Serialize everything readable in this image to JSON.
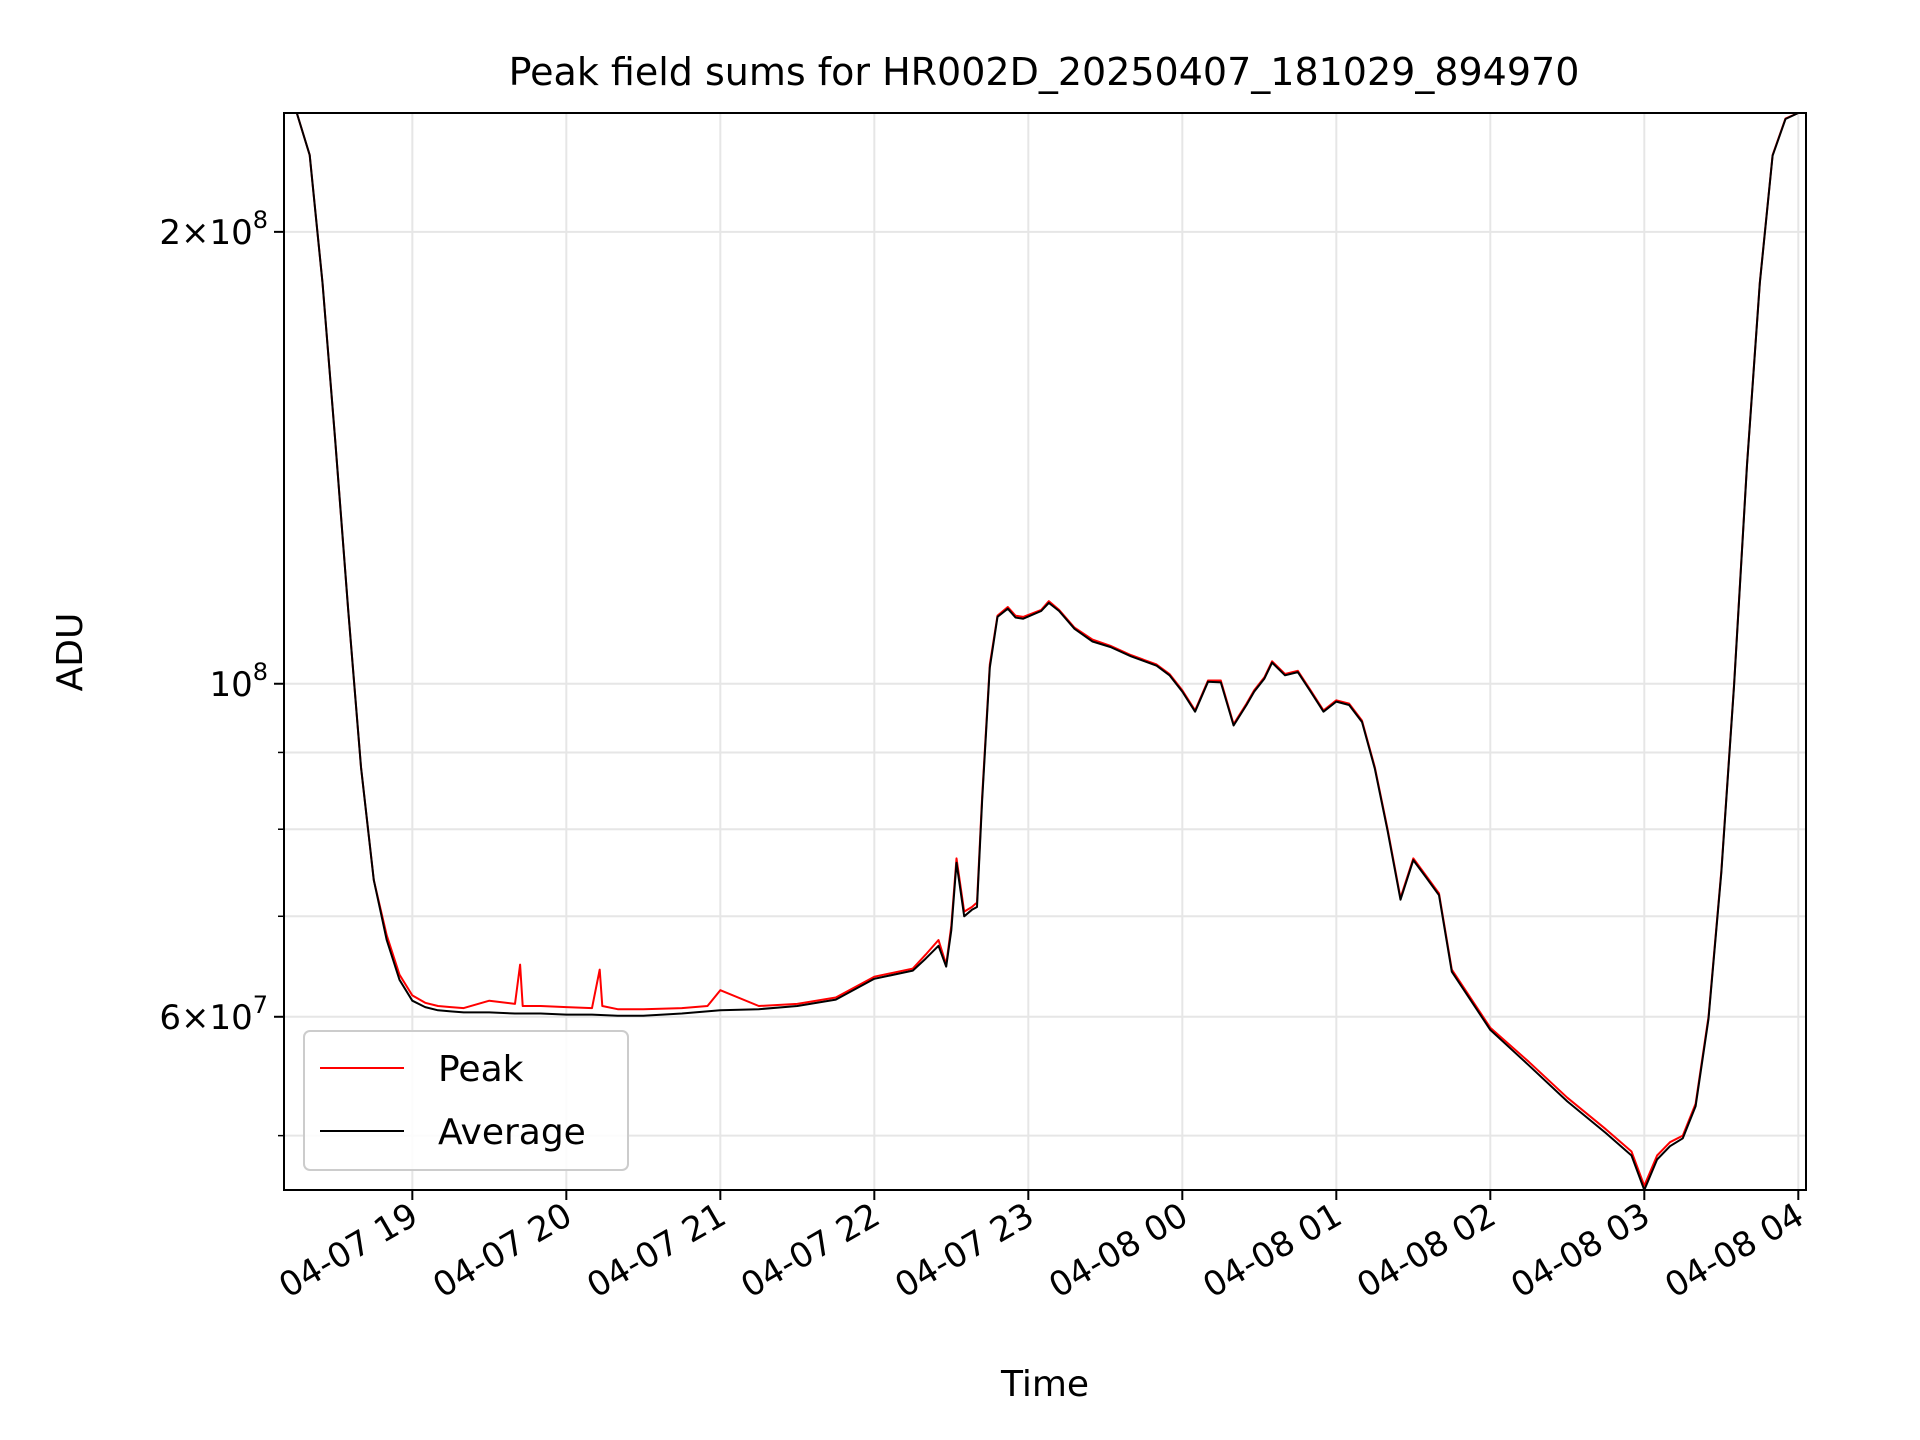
{
  "chart_data": {
    "type": "line",
    "title": "Peak field sums for HR002D_20250407_181029_894970",
    "xlabel": "Time",
    "ylabel": "ADU",
    "yscale": "log",
    "ylim": [
      46000000,
      240000000
    ],
    "xlim": [
      "2025-04-07 18:10",
      "2025-04-08 04:03"
    ],
    "grid": true,
    "legend_position": "lower-left",
    "x_ticks": [
      {
        "t": "2025-04-07 19:00",
        "label": "04-07 19"
      },
      {
        "t": "2025-04-07 20:00",
        "label": "04-07 20"
      },
      {
        "t": "2025-04-07 21:00",
        "label": "04-07 21"
      },
      {
        "t": "2025-04-07 22:00",
        "label": "04-07 22"
      },
      {
        "t": "2025-04-07 23:00",
        "label": "04-07 23"
      },
      {
        "t": "2025-04-08 00:00",
        "label": "04-08 00"
      },
      {
        "t": "2025-04-08 01:00",
        "label": "04-08 01"
      },
      {
        "t": "2025-04-08 02:00",
        "label": "04-08 02"
      },
      {
        "t": "2025-04-08 03:00",
        "label": "04-08 03"
      },
      {
        "t": "2025-04-08 04:00",
        "label": "04-08 04"
      }
    ],
    "y_major_ticks": [
      {
        "value": 60000000,
        "mant": "6",
        "exp": "7"
      },
      {
        "value": 100000000,
        "mant": "",
        "exp": "8"
      },
      {
        "value": 200000000,
        "mant": "2",
        "exp": "8"
      }
    ],
    "y_minor_gridlines": [
      50000000,
      70000000,
      80000000,
      90000000
    ],
    "series": [
      {
        "name": "Peak",
        "color": "#ff0000",
        "width": 1,
        "x": [
          "2025-04-07 18:10",
          "2025-04-07 18:15",
          "2025-04-07 18:20",
          "2025-04-07 18:25",
          "2025-04-07 18:30",
          "2025-04-07 18:35",
          "2025-04-07 18:40",
          "2025-04-07 18:45",
          "2025-04-07 18:50",
          "2025-04-07 18:55",
          "2025-04-07 19:00",
          "2025-04-07 19:05",
          "2025-04-07 19:10",
          "2025-04-07 19:15",
          "2025-04-07 19:20",
          "2025-04-07 19:30",
          "2025-04-07 19:40",
          "2025-04-07 19:42",
          "2025-04-07 19:43",
          "2025-04-07 19:50",
          "2025-04-07 20:00",
          "2025-04-07 20:10",
          "2025-04-07 20:13",
          "2025-04-07 20:14",
          "2025-04-07 20:20",
          "2025-04-07 20:30",
          "2025-04-07 20:45",
          "2025-04-07 20:55",
          "2025-04-07 21:00",
          "2025-04-07 21:15",
          "2025-04-07 21:30",
          "2025-04-07 21:45",
          "2025-04-07 22:00",
          "2025-04-07 22:15",
          "2025-04-07 22:20",
          "2025-04-07 22:25",
          "2025-04-07 22:28",
          "2025-04-07 22:30",
          "2025-04-07 22:32",
          "2025-04-07 22:35",
          "2025-04-07 22:38",
          "2025-04-07 22:40",
          "2025-04-07 22:42",
          "2025-04-07 22:45",
          "2025-04-07 22:48",
          "2025-04-07 22:52",
          "2025-04-07 22:55",
          "2025-04-07 22:58",
          "2025-04-07 23:05",
          "2025-04-07 23:08",
          "2025-04-07 23:12",
          "2025-04-07 23:18",
          "2025-04-07 23:25",
          "2025-04-07 23:32",
          "2025-04-07 23:40",
          "2025-04-07 23:50",
          "2025-04-07 23:55",
          "2025-04-08 00:00",
          "2025-04-08 00:05",
          "2025-04-08 00:10",
          "2025-04-08 00:15",
          "2025-04-08 00:20",
          "2025-04-08 00:25",
          "2025-04-08 00:28",
          "2025-04-08 00:32",
          "2025-04-08 00:35",
          "2025-04-08 00:40",
          "2025-04-08 00:45",
          "2025-04-08 00:50",
          "2025-04-08 00:55",
          "2025-04-08 01:00",
          "2025-04-08 01:05",
          "2025-04-08 01:10",
          "2025-04-08 01:15",
          "2025-04-08 01:20",
          "2025-04-08 01:25",
          "2025-04-08 01:30",
          "2025-04-08 01:35",
          "2025-04-08 01:40",
          "2025-04-08 01:45",
          "2025-04-08 02:00",
          "2025-04-08 02:15",
          "2025-04-08 02:30",
          "2025-04-08 02:45",
          "2025-04-08 02:55",
          "2025-04-08 03:00",
          "2025-04-08 03:05",
          "2025-04-08 03:10",
          "2025-04-08 03:15",
          "2025-04-08 03:20",
          "2025-04-08 03:25",
          "2025-04-08 03:30",
          "2025-04-08 03:35",
          "2025-04-08 03:40",
          "2025-04-08 03:45",
          "2025-04-08 03:50",
          "2025-04-08 03:55",
          "2025-04-08 04:00",
          "2025-04-08 04:03"
        ],
        "y": [
          240000000,
          240000000,
          225000000,
          185000000,
          145000000,
          112000000,
          88000000,
          74000000,
          68000000,
          64000000,
          62000000,
          61300000,
          61000000,
          60900000,
          60800000,
          61500000,
          61200000,
          65000000,
          61000000,
          61000000,
          60900000,
          60800000,
          64500000,
          61000000,
          60700000,
          60700000,
          60800000,
          61000000,
          62500000,
          61000000,
          61200000,
          61800000,
          63800000,
          64600000,
          66000000,
          67500000,
          65000000,
          69000000,
          76500000,
          70500000,
          71000000,
          71500000,
          84000000,
          103000000,
          111000000,
          112500000,
          111000000,
          110800000,
          112000000,
          113500000,
          112000000,
          109000000,
          107000000,
          106000000,
          104500000,
          103000000,
          101500000,
          99000000,
          96000000,
          100500000,
          100500000,
          94000000,
          97000000,
          99000000,
          101000000,
          103500000,
          101500000,
          102000000,
          99000000,
          96000000,
          97500000,
          97000000,
          94500000,
          88000000,
          80000000,
          72000000,
          76500000,
          74500000,
          72500000,
          64500000,
          59000000,
          56000000,
          53000000,
          50500000,
          48800000,
          46300000,
          48500000,
          49500000,
          50000000,
          52500000,
          60000000,
          75000000,
          100000000,
          140000000,
          185000000,
          225000000,
          238000000,
          240000000,
          240000000
        ]
      },
      {
        "name": "Average",
        "color": "#000000",
        "width": 1,
        "x": [
          "2025-04-07 18:10",
          "2025-04-07 18:15",
          "2025-04-07 18:20",
          "2025-04-07 18:25",
          "2025-04-07 18:30",
          "2025-04-07 18:35",
          "2025-04-07 18:40",
          "2025-04-07 18:45",
          "2025-04-07 18:50",
          "2025-04-07 18:55",
          "2025-04-07 19:00",
          "2025-04-07 19:05",
          "2025-04-07 19:10",
          "2025-04-07 19:15",
          "2025-04-07 19:20",
          "2025-04-07 19:30",
          "2025-04-07 19:40",
          "2025-04-07 19:50",
          "2025-04-07 20:00",
          "2025-04-07 20:10",
          "2025-04-07 20:20",
          "2025-04-07 20:30",
          "2025-04-07 20:45",
          "2025-04-07 21:00",
          "2025-04-07 21:15",
          "2025-04-07 21:30",
          "2025-04-07 21:45",
          "2025-04-07 22:00",
          "2025-04-07 22:15",
          "2025-04-07 22:20",
          "2025-04-07 22:25",
          "2025-04-07 22:28",
          "2025-04-07 22:30",
          "2025-04-07 22:32",
          "2025-04-07 22:35",
          "2025-04-07 22:38",
          "2025-04-07 22:40",
          "2025-04-07 22:42",
          "2025-04-07 22:45",
          "2025-04-07 22:48",
          "2025-04-07 22:52",
          "2025-04-07 22:55",
          "2025-04-07 22:58",
          "2025-04-07 23:05",
          "2025-04-07 23:08",
          "2025-04-07 23:12",
          "2025-04-07 23:18",
          "2025-04-07 23:25",
          "2025-04-07 23:32",
          "2025-04-07 23:40",
          "2025-04-07 23:50",
          "2025-04-07 23:55",
          "2025-04-08 00:00",
          "2025-04-08 00:05",
          "2025-04-08 00:10",
          "2025-04-08 00:15",
          "2025-04-08 00:20",
          "2025-04-08 00:25",
          "2025-04-08 00:28",
          "2025-04-08 00:32",
          "2025-04-08 00:35",
          "2025-04-08 00:40",
          "2025-04-08 00:45",
          "2025-04-08 00:50",
          "2025-04-08 00:55",
          "2025-04-08 01:00",
          "2025-04-08 01:05",
          "2025-04-08 01:10",
          "2025-04-08 01:15",
          "2025-04-08 01:20",
          "2025-04-08 01:25",
          "2025-04-08 01:30",
          "2025-04-08 01:35",
          "2025-04-08 01:40",
          "2025-04-08 01:45",
          "2025-04-08 02:00",
          "2025-04-08 02:15",
          "2025-04-08 02:30",
          "2025-04-08 02:45",
          "2025-04-08 02:55",
          "2025-04-08 03:00",
          "2025-04-08 03:05",
          "2025-04-08 03:10",
          "2025-04-08 03:15",
          "2025-04-08 03:20",
          "2025-04-08 03:25",
          "2025-04-08 03:30",
          "2025-04-08 03:35",
          "2025-04-08 03:40",
          "2025-04-08 03:45",
          "2025-04-08 03:50",
          "2025-04-08 03:55",
          "2025-04-08 04:00",
          "2025-04-08 04:03"
        ],
        "y": [
          240000000,
          240000000,
          225000000,
          185000000,
          145000000,
          112000000,
          88000000,
          74000000,
          67500000,
          63500000,
          61500000,
          60900000,
          60600000,
          60500000,
          60400000,
          60400000,
          60300000,
          60300000,
          60200000,
          60200000,
          60100000,
          60100000,
          60300000,
          60600000,
          60700000,
          61000000,
          61600000,
          63600000,
          64400000,
          65600000,
          66900000,
          64800000,
          68500000,
          76000000,
          70000000,
          70700000,
          71000000,
          83500000,
          102500000,
          110800000,
          112200000,
          110700000,
          110500000,
          111800000,
          113200000,
          111800000,
          108800000,
          106700000,
          105800000,
          104300000,
          102800000,
          101300000,
          98800000,
          95800000,
          100300000,
          100200000,
          93800000,
          96800000,
          98800000,
          100800000,
          103300000,
          101300000,
          101800000,
          98800000,
          95800000,
          97300000,
          96800000,
          94300000,
          87800000,
          79800000,
          71800000,
          76300000,
          74300000,
          72300000,
          64300000,
          58800000,
          55700000,
          52700000,
          50200000,
          48500000,
          46000000,
          48200000,
          49200000,
          49800000,
          52300000,
          59800000,
          74800000,
          99800000,
          139800000,
          184800000,
          224800000,
          237800000,
          240000000,
          240000000
        ]
      }
    ]
  }
}
